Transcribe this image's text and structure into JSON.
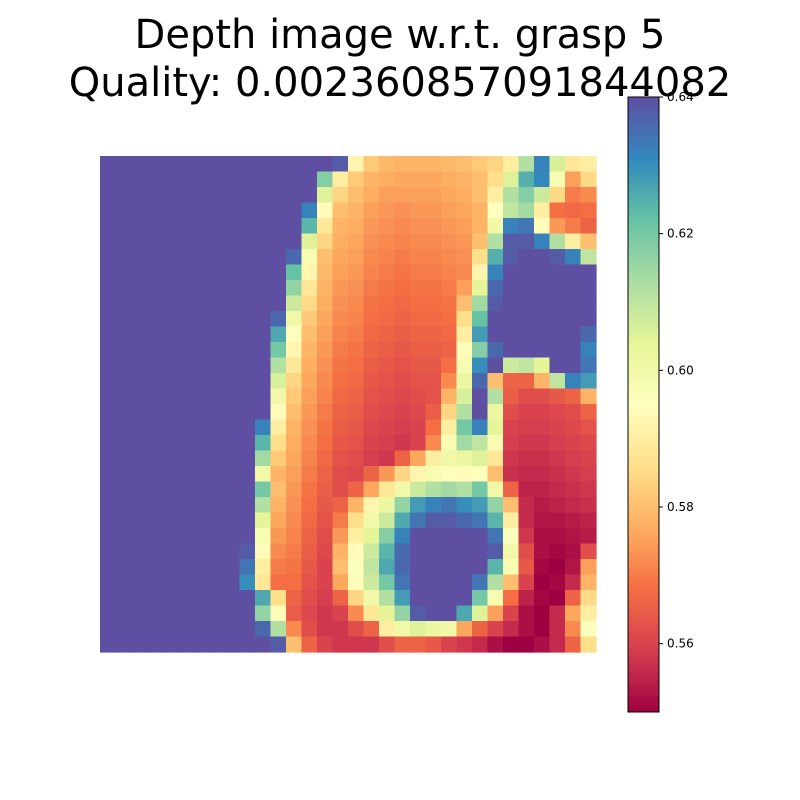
{
  "chart_data": {
    "type": "heatmap",
    "title_lines": [
      "Depth image w.r.t. grasp 5",
      "Quality: 0.002360857091844082"
    ],
    "colormap": "Spectral",
    "vmin": 0.55,
    "vmax": 0.64,
    "colorbar_ticks": [
      "0.64",
      "0.62",
      "0.60",
      "0.58",
      "0.56"
    ],
    "colorbar_tick_values": [
      0.64,
      0.62,
      0.6,
      0.58,
      0.56
    ],
    "rows": 32,
    "cols": 32,
    "grid": false,
    "legend": "colorbar-right",
    "values": [
      [
        0.64,
        0.64,
        0.64,
        0.64,
        0.64,
        0.64,
        0.64,
        0.64,
        0.64,
        0.64,
        0.64,
        0.64,
        0.64,
        0.64,
        0.64,
        0.638,
        0.592,
        0.582,
        0.579,
        0.578,
        0.578,
        0.578,
        0.579,
        0.58,
        0.582,
        0.584,
        0.59,
        0.612,
        0.632,
        0.606,
        0.588,
        0.59
      ],
      [
        0.64,
        0.64,
        0.64,
        0.64,
        0.64,
        0.64,
        0.64,
        0.64,
        0.64,
        0.64,
        0.64,
        0.64,
        0.64,
        0.64,
        0.618,
        0.59,
        0.582,
        0.578,
        0.577,
        0.576,
        0.576,
        0.576,
        0.577,
        0.578,
        0.58,
        0.586,
        0.605,
        0.625,
        0.631,
        0.598,
        0.575,
        0.585
      ],
      [
        0.64,
        0.64,
        0.64,
        0.64,
        0.64,
        0.64,
        0.64,
        0.64,
        0.64,
        0.64,
        0.64,
        0.64,
        0.64,
        0.64,
        0.605,
        0.584,
        0.58,
        0.577,
        0.575,
        0.575,
        0.575,
        0.575,
        0.576,
        0.577,
        0.58,
        0.59,
        0.612,
        0.618,
        0.608,
        0.585,
        0.57,
        0.572
      ],
      [
        0.64,
        0.64,
        0.64,
        0.64,
        0.64,
        0.64,
        0.64,
        0.64,
        0.64,
        0.64,
        0.64,
        0.64,
        0.64,
        0.632,
        0.594,
        0.58,
        0.578,
        0.575,
        0.574,
        0.573,
        0.574,
        0.574,
        0.575,
        0.576,
        0.578,
        0.595,
        0.61,
        0.614,
        0.59,
        0.568,
        0.567,
        0.568
      ],
      [
        0.64,
        0.64,
        0.64,
        0.64,
        0.64,
        0.64,
        0.64,
        0.64,
        0.64,
        0.64,
        0.64,
        0.64,
        0.64,
        0.624,
        0.588,
        0.578,
        0.577,
        0.574,
        0.573,
        0.572,
        0.573,
        0.573,
        0.574,
        0.575,
        0.578,
        0.6,
        0.632,
        0.634,
        0.594,
        0.574,
        0.57,
        0.566
      ],
      [
        0.64,
        0.64,
        0.64,
        0.64,
        0.64,
        0.64,
        0.64,
        0.64,
        0.64,
        0.64,
        0.64,
        0.64,
        0.64,
        0.605,
        0.584,
        0.577,
        0.576,
        0.573,
        0.572,
        0.571,
        0.572,
        0.572,
        0.573,
        0.574,
        0.58,
        0.612,
        0.638,
        0.638,
        0.632,
        0.612,
        0.59,
        0.58
      ],
      [
        0.64,
        0.64,
        0.64,
        0.64,
        0.64,
        0.64,
        0.64,
        0.64,
        0.64,
        0.64,
        0.64,
        0.64,
        0.636,
        0.598,
        0.58,
        0.576,
        0.575,
        0.572,
        0.571,
        0.57,
        0.571,
        0.571,
        0.572,
        0.573,
        0.586,
        0.625,
        0.638,
        0.64,
        0.64,
        0.638,
        0.632,
        0.61
      ],
      [
        0.64,
        0.64,
        0.64,
        0.64,
        0.64,
        0.64,
        0.64,
        0.64,
        0.64,
        0.64,
        0.64,
        0.64,
        0.622,
        0.592,
        0.579,
        0.575,
        0.574,
        0.571,
        0.57,
        0.569,
        0.57,
        0.57,
        0.571,
        0.572,
        0.592,
        0.632,
        0.64,
        0.64,
        0.64,
        0.64,
        0.64,
        0.64
      ],
      [
        0.64,
        0.64,
        0.64,
        0.64,
        0.64,
        0.64,
        0.64,
        0.64,
        0.64,
        0.64,
        0.64,
        0.64,
        0.616,
        0.588,
        0.578,
        0.574,
        0.573,
        0.57,
        0.569,
        0.568,
        0.569,
        0.569,
        0.57,
        0.575,
        0.604,
        0.636,
        0.64,
        0.64,
        0.64,
        0.64,
        0.64,
        0.64
      ],
      [
        0.64,
        0.64,
        0.64,
        0.64,
        0.64,
        0.64,
        0.64,
        0.64,
        0.64,
        0.64,
        0.64,
        0.64,
        0.608,
        0.585,
        0.577,
        0.573,
        0.572,
        0.569,
        0.568,
        0.567,
        0.568,
        0.568,
        0.569,
        0.58,
        0.614,
        0.638,
        0.64,
        0.64,
        0.64,
        0.64,
        0.64,
        0.64
      ],
      [
        0.64,
        0.64,
        0.64,
        0.64,
        0.64,
        0.64,
        0.64,
        0.64,
        0.64,
        0.64,
        0.64,
        0.636,
        0.6,
        0.582,
        0.576,
        0.572,
        0.571,
        0.568,
        0.567,
        0.566,
        0.567,
        0.567,
        0.568,
        0.586,
        0.622,
        0.64,
        0.64,
        0.64,
        0.64,
        0.64,
        0.64,
        0.64
      ],
      [
        0.64,
        0.64,
        0.64,
        0.64,
        0.64,
        0.64,
        0.64,
        0.64,
        0.64,
        0.64,
        0.64,
        0.626,
        0.596,
        0.58,
        0.575,
        0.571,
        0.57,
        0.567,
        0.566,
        0.565,
        0.566,
        0.566,
        0.567,
        0.59,
        0.628,
        0.64,
        0.64,
        0.64,
        0.64,
        0.64,
        0.64,
        0.636
      ],
      [
        0.64,
        0.64,
        0.64,
        0.64,
        0.64,
        0.64,
        0.64,
        0.64,
        0.64,
        0.64,
        0.64,
        0.62,
        0.592,
        0.578,
        0.574,
        0.57,
        0.569,
        0.566,
        0.565,
        0.564,
        0.565,
        0.565,
        0.566,
        0.594,
        0.618,
        0.636,
        0.64,
        0.64,
        0.64,
        0.64,
        0.64,
        0.632
      ],
      [
        0.64,
        0.64,
        0.64,
        0.64,
        0.64,
        0.64,
        0.64,
        0.64,
        0.64,
        0.64,
        0.64,
        0.612,
        0.588,
        0.577,
        0.573,
        0.569,
        0.568,
        0.565,
        0.564,
        0.563,
        0.564,
        0.564,
        0.568,
        0.598,
        0.63,
        0.64,
        0.608,
        0.61,
        0.604,
        0.64,
        0.64,
        0.634
      ],
      [
        0.64,
        0.64,
        0.64,
        0.64,
        0.64,
        0.64,
        0.64,
        0.64,
        0.64,
        0.64,
        0.64,
        0.606,
        0.584,
        0.576,
        0.572,
        0.568,
        0.567,
        0.564,
        0.563,
        0.562,
        0.563,
        0.563,
        0.572,
        0.602,
        0.636,
        0.58,
        0.566,
        0.566,
        0.578,
        0.61,
        0.632,
        0.628
      ],
      [
        0.64,
        0.64,
        0.64,
        0.64,
        0.64,
        0.64,
        0.64,
        0.64,
        0.64,
        0.64,
        0.64,
        0.6,
        0.582,
        0.575,
        0.571,
        0.567,
        0.566,
        0.563,
        0.562,
        0.561,
        0.562,
        0.563,
        0.578,
        0.606,
        0.64,
        0.612,
        0.565,
        0.562,
        0.562,
        0.564,
        0.566,
        0.578
      ],
      [
        0.64,
        0.64,
        0.64,
        0.64,
        0.64,
        0.64,
        0.64,
        0.64,
        0.64,
        0.64,
        0.64,
        0.594,
        0.58,
        0.574,
        0.57,
        0.566,
        0.565,
        0.562,
        0.561,
        0.56,
        0.561,
        0.565,
        0.584,
        0.612,
        0.64,
        0.602,
        0.562,
        0.56,
        0.56,
        0.561,
        0.562,
        0.566
      ],
      [
        0.64,
        0.64,
        0.64,
        0.64,
        0.64,
        0.64,
        0.64,
        0.64,
        0.64,
        0.64,
        0.632,
        0.59,
        0.578,
        0.573,
        0.569,
        0.565,
        0.564,
        0.561,
        0.56,
        0.559,
        0.56,
        0.568,
        0.59,
        0.62,
        0.632,
        0.604,
        0.56,
        0.559,
        0.559,
        0.56,
        0.561,
        0.563
      ],
      [
        0.64,
        0.64,
        0.64,
        0.64,
        0.64,
        0.64,
        0.64,
        0.64,
        0.64,
        0.64,
        0.624,
        0.586,
        0.577,
        0.572,
        0.568,
        0.564,
        0.563,
        0.56,
        0.559,
        0.558,
        0.56,
        0.572,
        0.598,
        0.614,
        0.61,
        0.598,
        0.559,
        0.558,
        0.558,
        0.559,
        0.56,
        0.561
      ],
      [
        0.64,
        0.64,
        0.64,
        0.64,
        0.64,
        0.64,
        0.64,
        0.64,
        0.64,
        0.64,
        0.614,
        0.582,
        0.576,
        0.571,
        0.567,
        0.563,
        0.562,
        0.559,
        0.558,
        0.566,
        0.576,
        0.59,
        0.6,
        0.602,
        0.605,
        0.588,
        0.558,
        0.557,
        0.557,
        0.558,
        0.559,
        0.56
      ],
      [
        0.64,
        0.64,
        0.64,
        0.64,
        0.64,
        0.64,
        0.64,
        0.64,
        0.64,
        0.64,
        0.6,
        0.578,
        0.575,
        0.57,
        0.566,
        0.562,
        0.561,
        0.566,
        0.574,
        0.584,
        0.592,
        0.598,
        0.596,
        0.594,
        0.596,
        0.58,
        0.557,
        0.556,
        0.556,
        0.557,
        0.558,
        0.559
      ],
      [
        0.64,
        0.64,
        0.64,
        0.64,
        0.64,
        0.64,
        0.64,
        0.64,
        0.64,
        0.64,
        0.62,
        0.58,
        0.574,
        0.569,
        0.565,
        0.562,
        0.566,
        0.576,
        0.588,
        0.6,
        0.608,
        0.612,
        0.614,
        0.612,
        0.62,
        0.6,
        0.566,
        0.555,
        0.555,
        0.556,
        0.557,
        0.558
      ],
      [
        0.64,
        0.64,
        0.64,
        0.64,
        0.64,
        0.64,
        0.64,
        0.64,
        0.64,
        0.64,
        0.612,
        0.578,
        0.573,
        0.568,
        0.564,
        0.566,
        0.578,
        0.592,
        0.602,
        0.616,
        0.628,
        0.632,
        0.634,
        0.63,
        0.628,
        0.616,
        0.58,
        0.556,
        0.554,
        0.555,
        0.556,
        0.557
      ],
      [
        0.64,
        0.64,
        0.64,
        0.64,
        0.64,
        0.64,
        0.64,
        0.64,
        0.64,
        0.64,
        0.604,
        0.576,
        0.572,
        0.567,
        0.563,
        0.57,
        0.586,
        0.6,
        0.608,
        0.626,
        0.634,
        0.638,
        0.638,
        0.636,
        0.634,
        0.624,
        0.59,
        0.556,
        0.553,
        0.553,
        0.554,
        0.555
      ],
      [
        0.64,
        0.64,
        0.64,
        0.64,
        0.64,
        0.64,
        0.64,
        0.64,
        0.64,
        0.64,
        0.598,
        0.574,
        0.571,
        0.566,
        0.562,
        0.574,
        0.59,
        0.604,
        0.618,
        0.632,
        0.64,
        0.64,
        0.64,
        0.64,
        0.64,
        0.634,
        0.596,
        0.558,
        0.552,
        0.552,
        0.553,
        0.554
      ],
      [
        0.64,
        0.64,
        0.64,
        0.64,
        0.64,
        0.64,
        0.64,
        0.64,
        0.64,
        0.638,
        0.594,
        0.572,
        0.57,
        0.565,
        0.561,
        0.578,
        0.594,
        0.608,
        0.624,
        0.636,
        0.64,
        0.64,
        0.64,
        0.64,
        0.64,
        0.638,
        0.6,
        0.562,
        0.552,
        0.551,
        0.552,
        0.562
      ],
      [
        0.64,
        0.64,
        0.64,
        0.64,
        0.64,
        0.64,
        0.64,
        0.64,
        0.64,
        0.634,
        0.59,
        0.57,
        0.569,
        0.564,
        0.56,
        0.58,
        0.596,
        0.61,
        0.626,
        0.636,
        0.64,
        0.64,
        0.64,
        0.64,
        0.64,
        0.624,
        0.598,
        0.564,
        0.551,
        0.55,
        0.553,
        0.575
      ],
      [
        0.64,
        0.64,
        0.64,
        0.64,
        0.64,
        0.64,
        0.64,
        0.64,
        0.64,
        0.63,
        0.588,
        0.568,
        0.568,
        0.563,
        0.56,
        0.576,
        0.594,
        0.608,
        0.62,
        0.634,
        0.64,
        0.64,
        0.64,
        0.64,
        0.634,
        0.612,
        0.58,
        0.56,
        0.55,
        0.551,
        0.556,
        0.578
      ],
      [
        0.64,
        0.64,
        0.64,
        0.64,
        0.64,
        0.64,
        0.64,
        0.64,
        0.64,
        0.64,
        0.626,
        0.586,
        0.566,
        0.562,
        0.559,
        0.566,
        0.584,
        0.6,
        0.612,
        0.628,
        0.64,
        0.64,
        0.64,
        0.64,
        0.62,
        0.598,
        0.568,
        0.555,
        0.551,
        0.55,
        0.566,
        0.585
      ],
      [
        0.64,
        0.64,
        0.64,
        0.64,
        0.64,
        0.64,
        0.64,
        0.64,
        0.64,
        0.64,
        0.616,
        0.594,
        0.565,
        0.561,
        0.558,
        0.56,
        0.572,
        0.588,
        0.604,
        0.616,
        0.638,
        0.64,
        0.64,
        0.626,
        0.605,
        0.575,
        0.56,
        0.552,
        0.55,
        0.556,
        0.576,
        0.59
      ],
      [
        0.64,
        0.64,
        0.64,
        0.64,
        0.64,
        0.64,
        0.64,
        0.64,
        0.64,
        0.64,
        0.636,
        0.612,
        0.572,
        0.562,
        0.558,
        0.558,
        0.562,
        0.566,
        0.59,
        0.6,
        0.605,
        0.602,
        0.6,
        0.576,
        0.566,
        0.56,
        0.556,
        0.552,
        0.55,
        0.556,
        0.572,
        0.596
      ],
      [
        0.64,
        0.64,
        0.64,
        0.64,
        0.64,
        0.64,
        0.64,
        0.64,
        0.64,
        0.64,
        0.64,
        0.638,
        0.58,
        0.566,
        0.56,
        0.558,
        0.558,
        0.558,
        0.562,
        0.566,
        0.566,
        0.564,
        0.56,
        0.558,
        0.556,
        0.552,
        0.55,
        0.55,
        0.552,
        0.556,
        0.566,
        0.586
      ]
    ]
  }
}
